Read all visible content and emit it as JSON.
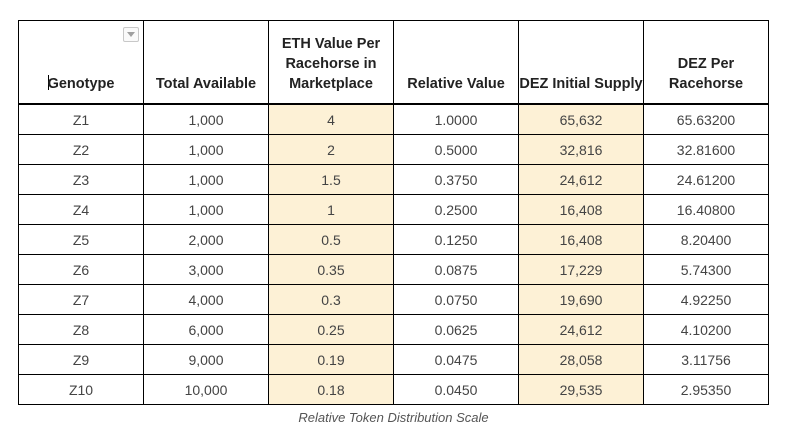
{
  "table": {
    "headers": [
      "Genotype",
      "Total Available",
      "ETH Value Per Racehorse in Marketplace",
      "Relative Value",
      "DEZ Initial Supply",
      "DEZ Per Racehorse"
    ],
    "highlight_color": "#fdf1d6",
    "highlighted_columns": [
      2,
      4
    ],
    "rows": [
      [
        "Z1",
        "1,000",
        "4",
        "1.0000",
        "65,632",
        "65.63200"
      ],
      [
        "Z2",
        "1,000",
        "2",
        "0.5000",
        "32,816",
        "32.81600"
      ],
      [
        "Z3",
        "1,000",
        "1.5",
        "0.3750",
        "24,612",
        "24.61200"
      ],
      [
        "Z4",
        "1,000",
        "1",
        "0.2500",
        "16,408",
        "16.40800"
      ],
      [
        "Z5",
        "2,000",
        "0.5",
        "0.1250",
        "16,408",
        "8.20400"
      ],
      [
        "Z6",
        "3,000",
        "0.35",
        "0.0875",
        "17,229",
        "5.74300"
      ],
      [
        "Z7",
        "4,000",
        "0.3",
        "0.0750",
        "19,690",
        "4.92250"
      ],
      [
        "Z8",
        "6,000",
        "0.25",
        "0.0625",
        "24,612",
        "4.10200"
      ],
      [
        "Z9",
        "9,000",
        "0.19",
        "0.0475",
        "28,058",
        "3.11756"
      ],
      [
        "Z10",
        "10,000",
        "0.18",
        "0.0450",
        "29,535",
        "2.95350"
      ]
    ]
  },
  "filter_icon": "chevron-down-icon",
  "caption": "Relative Token Distribution Scale"
}
